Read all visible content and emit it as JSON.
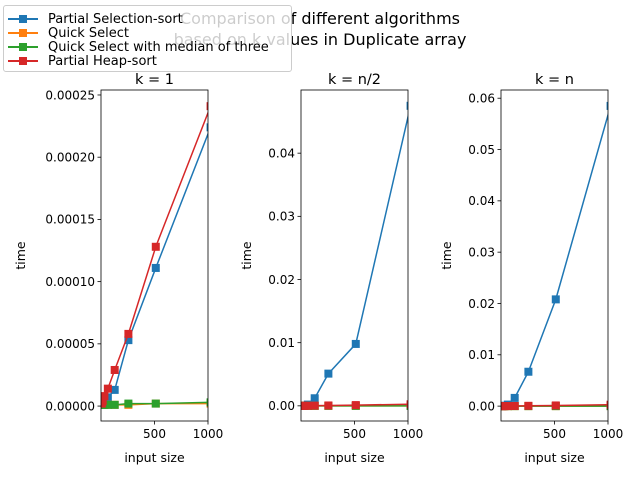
{
  "suptitle_lines": [
    "Comparison of different algorithms",
    "based on k values in Duplicate array"
  ],
  "legend": [
    {
      "label": "Partial Selection-sort",
      "color": "#1f77b4"
    },
    {
      "label": "Quick Select",
      "color": "#ff7f0e"
    },
    {
      "label": "Quick Select with median of three",
      "color": "#2ca02c"
    },
    {
      "label": "Partial Heap-sort",
      "color": "#d62728"
    }
  ],
  "chart_data": [
    {
      "type": "line",
      "title": "k = 1",
      "xlabel": "input size",
      "ylabel": "time",
      "xlim": [
        0,
        1000
      ],
      "ylim": [
        -1.2e-05,
        0.000254
      ],
      "xticks": [
        500,
        1000
      ],
      "xtick_labels": [
        "500",
        "1000"
      ],
      "yticks": [
        0,
        5e-05,
        0.0001,
        0.00015,
        0.0002,
        0.00025
      ],
      "ytick_labels": [
        "0.00000",
        "0.00005",
        "0.00010",
        "0.00015",
        "0.00020",
        "0.00025"
      ],
      "x": [
        8,
        16,
        32,
        64,
        128,
        256,
        512,
        1024
      ],
      "series": [
        {
          "name": "Partial Selection-sort",
          "color": "#1f77b4",
          "values": [
            1e-06,
            2e-06,
            4e-06,
            7e-06,
            1.3e-05,
            5.3e-05,
            0.000111,
            0.000224
          ]
        },
        {
          "name": "Quick Select",
          "color": "#ff7f0e",
          "values": [
            1e-06,
            1e-06,
            1e-06,
            1e-06,
            1e-06,
            1e-06,
            2e-06,
            2e-06
          ]
        },
        {
          "name": "Quick Select with median of three",
          "color": "#2ca02c",
          "values": [
            1e-06,
            1e-06,
            1e-06,
            1e-06,
            1e-06,
            2e-06,
            2e-06,
            3e-06
          ]
        },
        {
          "name": "Partial Heap-sort",
          "color": "#d62728",
          "values": [
            2e-06,
            4e-06,
            8e-06,
            1.4e-05,
            2.9e-05,
            5.8e-05,
            0.000128,
            0.000241
          ]
        }
      ]
    },
    {
      "type": "line",
      "title": "k = n/2",
      "xlabel": "input size",
      "ylabel": "time",
      "xlim": [
        0,
        1000
      ],
      "ylim": [
        -0.0024,
        0.05
      ],
      "xticks": [
        500,
        1000
      ],
      "xtick_labels": [
        "500",
        "1000"
      ],
      "yticks": [
        0,
        0.01,
        0.02,
        0.03,
        0.04
      ],
      "ytick_labels": [
        "0.00",
        "0.01",
        "0.02",
        "0.03",
        "0.04"
      ],
      "x": [
        8,
        16,
        32,
        64,
        128,
        256,
        512,
        1024
      ],
      "series": [
        {
          "name": "Partial Selection-sort",
          "color": "#1f77b4",
          "values": [
            0,
            0,
            5e-05,
            0.0002,
            0.0012,
            0.0051,
            0.0098,
            0.0475
          ]
        },
        {
          "name": "Quick Select",
          "color": "#ff7f0e",
          "values": [
            0,
            0,
            0,
            0,
            0,
            0,
            0,
            0
          ]
        },
        {
          "name": "Quick Select with median of three",
          "color": "#2ca02c",
          "values": [
            0,
            0,
            0,
            0,
            0,
            0,
            0,
            0
          ]
        },
        {
          "name": "Partial Heap-sort",
          "color": "#d62728",
          "values": [
            0,
            0,
            0,
            1e-05,
            3e-05,
            6e-05,
            0.00012,
            0.00025
          ]
        }
      ]
    },
    {
      "type": "line",
      "title": "k = n",
      "xlabel": "input size",
      "ylabel": "time",
      "xlim": [
        0,
        1000
      ],
      "ylim": [
        -0.0029,
        0.0616
      ],
      "xticks": [
        500,
        1000
      ],
      "xtick_labels": [
        "500",
        "1000"
      ],
      "yticks": [
        0,
        0.01,
        0.02,
        0.03,
        0.04,
        0.05,
        0.06
      ],
      "ytick_labels": [
        "0.00",
        "0.01",
        "0.02",
        "0.03",
        "0.04",
        "0.05",
        "0.06"
      ],
      "x": [
        8,
        16,
        32,
        64,
        128,
        256,
        512,
        1024
      ],
      "series": [
        {
          "name": "Partial Selection-sort",
          "color": "#1f77b4",
          "values": [
            0,
            2e-05,
            8e-05,
            0.0003,
            0.0016,
            0.0067,
            0.0208,
            0.0585
          ]
        },
        {
          "name": "Quick Select",
          "color": "#ff7f0e",
          "values": [
            0,
            0,
            0,
            0,
            0,
            0,
            0,
            0
          ]
        },
        {
          "name": "Quick Select with median of three",
          "color": "#2ca02c",
          "values": [
            0,
            0,
            0,
            0,
            0,
            0,
            0,
            0
          ]
        },
        {
          "name": "Partial Heap-sort",
          "color": "#d62728",
          "values": [
            0,
            0,
            0,
            1e-05,
            3e-05,
            6e-05,
            0.00013,
            0.00028
          ]
        }
      ]
    }
  ]
}
